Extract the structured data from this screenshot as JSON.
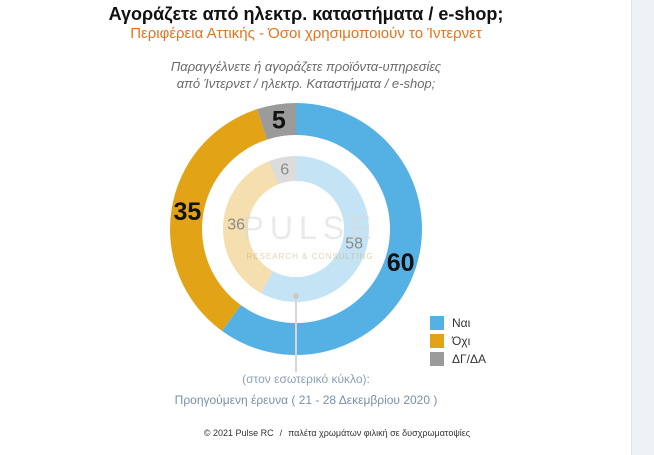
{
  "header": {
    "title": "Αγοράζετε από ηλεκτρ. καταστήματα / e-shop;",
    "subtitle": "Περιφέρεια Αττικής - Όσοι χρησιμοποιούν το Ίντερνετ"
  },
  "question": {
    "line1": "Παραγγέλνετε ή αγοράζετε προϊόντα-υπηρεσίες",
    "line2": "από Ίντερνετ / ηλεκτρ. Καταστήματα / e-shop;"
  },
  "watermark": {
    "main": "PULSE",
    "sub": "RESEARCH & CONSULTING"
  },
  "colors": {
    "yes": "#55b1e4",
    "no": "#e3a317",
    "dk": "#9b9b9b"
  },
  "chart_data": {
    "type": "donut",
    "categories": [
      "Ναι",
      "Όχι",
      "ΔΓ/ΔΑ"
    ],
    "series": [
      {
        "name": "current",
        "values": [
          60,
          35,
          5
        ]
      },
      {
        "name": "previous",
        "values": [
          58,
          36,
          6
        ]
      }
    ],
    "legend_position": "bottom-right"
  },
  "notes": {
    "inner_circle": "(στον εσωτερικό κύκλο):",
    "previous_survey": "Προηγούμενη έρευνα ( 21 - 28  Δεκεμβρίου 2020 )"
  },
  "footer": {
    "copyright": "© 2021 Pulse RC",
    "separator": "/",
    "palette_note": "παλέτα χρωμάτων φιλική σε δυσχρωματοψίες"
  }
}
